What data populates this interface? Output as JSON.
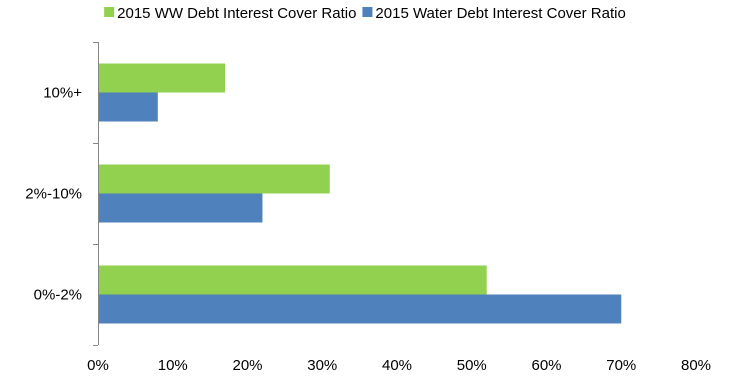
{
  "chart_data": {
    "type": "bar",
    "orientation": "horizontal",
    "categories": [
      "10%+",
      "2%-10%",
      "0%-2%"
    ],
    "series": [
      {
        "name": "2015 WW Debt Interest Cover Ratio",
        "color": "#92D050",
        "values": [
          17,
          31,
          52
        ]
      },
      {
        "name": "2015 Water Debt Interest Cover Ratio",
        "color": "#4F81BD",
        "values": [
          8,
          22,
          70
        ]
      }
    ],
    "xlim": [
      0,
      80
    ],
    "x_ticks": [
      0,
      10,
      20,
      30,
      40,
      50,
      60,
      70,
      80
    ],
    "x_tick_labels": [
      "0%",
      "10%",
      "20%",
      "30%",
      "40%",
      "50%",
      "60%",
      "70%",
      "80%"
    ],
    "title": "",
    "xlabel": "",
    "ylabel": "",
    "legend_position": "top",
    "grid": false
  }
}
